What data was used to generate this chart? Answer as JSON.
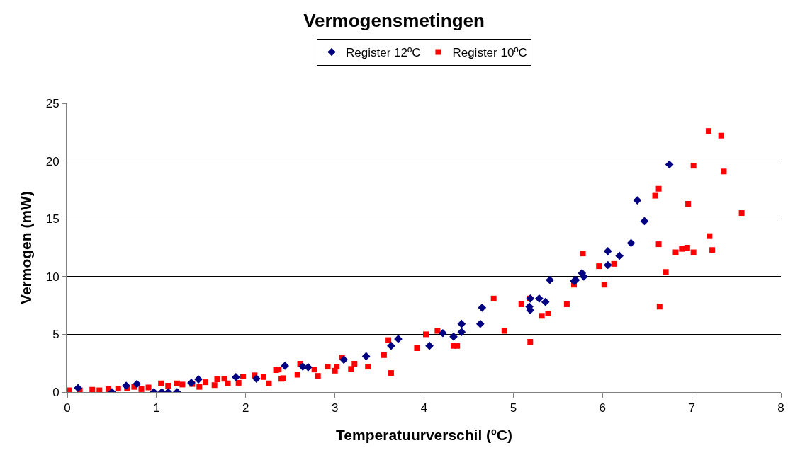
{
  "chart_data": {
    "type": "scatter",
    "title": "Vermogensmetingen",
    "xlabel": "Temperatuurverschil (ºC)",
    "ylabel": "Vermogen (mW)",
    "xlim": [
      0,
      8
    ],
    "xticks": [
      0,
      1,
      2,
      3,
      4,
      5,
      6,
      7,
      8
    ],
    "ylim": [
      0,
      25
    ],
    "yticks": [
      0,
      5,
      10,
      15,
      20,
      25
    ],
    "grid": "y",
    "legend": "top",
    "series": [
      {
        "name": "Register 12ºC",
        "color": "#000080",
        "marker": "diamond",
        "x": [
          0.12,
          0.5,
          0.66,
          0.78,
          0.97,
          1.06,
          1.13,
          1.23,
          1.39,
          1.47,
          1.89,
          2.12,
          2.44,
          2.64,
          2.7,
          3.1,
          3.35,
          3.63,
          3.71,
          4.06,
          4.21,
          4.33,
          4.42,
          4.42,
          4.63,
          4.65,
          5.18,
          5.19,
          5.19,
          5.29,
          5.36,
          5.41,
          5.68,
          5.7,
          5.77,
          5.79,
          6.06,
          6.06,
          6.19,
          6.32,
          6.39,
          6.47,
          6.75
        ],
        "values": [
          0.35,
          0,
          0.55,
          0.7,
          0,
          0,
          0,
          0,
          0.8,
          1.1,
          1.29,
          1.16,
          2.27,
          2.2,
          2.15,
          2.8,
          3.1,
          4,
          4.6,
          4,
          5.1,
          4.8,
          5.2,
          5.9,
          5.9,
          7.3,
          7.4,
          7.1,
          8.1,
          8.1,
          7.8,
          9.7,
          9.6,
          9.7,
          10.3,
          10,
          12.2,
          11,
          11.8,
          12.9,
          16.6,
          14.8,
          19.7
        ]
      },
      {
        "name": "Register 10ºC",
        "color": "#ff0000",
        "marker": "square",
        "x": [
          0.02,
          0.14,
          0.28,
          0.36,
          0.46,
          0.57,
          0.67,
          0.75,
          0.83,
          0.91,
          1.05,
          1.13,
          1.23,
          1.29,
          1.4,
          1.48,
          1.55,
          1.65,
          1.68,
          1.76,
          1.8,
          1.92,
          1.97,
          2.1,
          2.2,
          2.26,
          2.34,
          2.37,
          2.4,
          2.42,
          2.58,
          2.61,
          2.77,
          2.81,
          2.92,
          3.0,
          3.02,
          3.08,
          3.18,
          3.22,
          3.37,
          3.55,
          3.6,
          3.63,
          3.92,
          4.02,
          4.15,
          4.33,
          4.37,
          4.78,
          4.9,
          5.09,
          5.18,
          5.19,
          5.32,
          5.39,
          5.6,
          5.68,
          5.78,
          5.96,
          6.02,
          6.13,
          6.59,
          6.63,
          6.63,
          6.64,
          6.71,
          6.82,
          6.89,
          6.95,
          6.96,
          7.02,
          7.02,
          7.19,
          7.2,
          7.23,
          7.33,
          7.36,
          7.56
        ],
        "values": [
          0.15,
          0.15,
          0.2,
          0.15,
          0.25,
          0.3,
          0.35,
          0.45,
          0.25,
          0.4,
          0.75,
          0.55,
          0.75,
          0.65,
          0.7,
          0.45,
          0.85,
          0.6,
          1.1,
          1.15,
          0.75,
          0.8,
          1.35,
          1.45,
          1.3,
          0.75,
          1.9,
          1.95,
          1.15,
          1.2,
          1.5,
          2.45,
          1.95,
          1.4,
          2.2,
          1.85,
          2.2,
          3,
          2,
          2.45,
          2.2,
          3.2,
          4.5,
          1.65,
          3.8,
          5,
          5.3,
          4,
          4,
          8.1,
          5.3,
          7.6,
          8.1,
          4.35,
          6.6,
          6.8,
          7.6,
          9.3,
          12,
          10.9,
          9.3,
          11.1,
          17,
          17.6,
          12.8,
          7.4,
          10.4,
          12.1,
          12.4,
          12.5,
          16.3,
          12.1,
          19.6,
          22.6,
          13.5,
          12.3,
          22.2,
          19.1,
          15.5
        ]
      }
    ]
  }
}
